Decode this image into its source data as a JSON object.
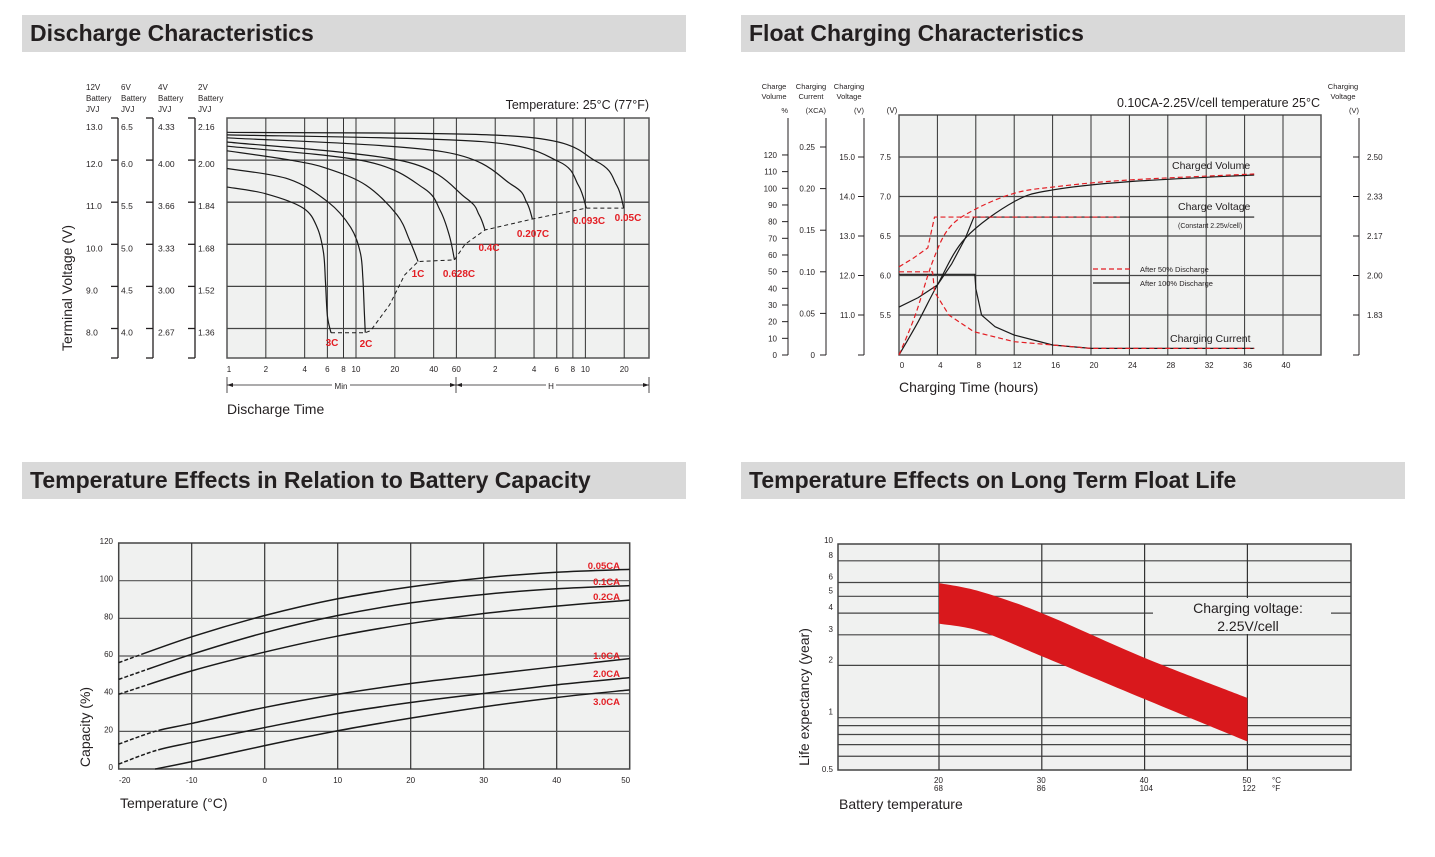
{
  "headers": {
    "discharge": "Discharge Characteristics",
    "float": "Float Charging Characteristics",
    "temp_capacity": "Temperature Effects in Relation to Battery Capacity",
    "float_life": "Temperature Effects on Long Term Float Life"
  },
  "colors": {
    "header_bg": "#d9d9d9",
    "plot_bg": "#f0f1f0",
    "accent_red": "#e31e24",
    "band_red": "#d9181c"
  },
  "chart_data": [
    {
      "type": "line",
      "id": "discharge",
      "temperature_note": "Temperature: 25°C (77°F)",
      "ylabel": "Terminal Voltage (V)",
      "xlabel": "Discharge Time",
      "x_scale": "log",
      "x_unit_labels": {
        "min": "Min",
        "h": "H"
      },
      "x_ticks_min": [
        1,
        2,
        4,
        6,
        8,
        10,
        20,
        40,
        60,
        120,
        240,
        360,
        480,
        600,
        1200
      ],
      "x_tick_labels": [
        "1",
        "2",
        "4",
        "6",
        "8",
        "10",
        "20",
        "40",
        "60",
        "2",
        "4",
        "6",
        "8",
        "10",
        "20"
      ],
      "xlim_min": [
        1,
        1860
      ],
      "ylim_12v": [
        7.3,
        13
      ],
      "y_levels_12v": [
        13,
        12,
        11,
        10,
        9,
        8
      ],
      "grid": true,
      "y_axes": [
        {
          "header": [
            "12V",
            "Battery",
            "JVJ"
          ],
          "ticks": [
            "13.0",
            "12.0",
            "11.0",
            "10.0",
            "9.0",
            "8.0"
          ]
        },
        {
          "header": [
            "6V",
            "Battery",
            "JVJ"
          ],
          "ticks": [
            "6.5",
            "6.0",
            "5.5",
            "5.0",
            "4.5",
            "4.0"
          ]
        },
        {
          "header": [
            "4V",
            "Battery",
            "JVJ"
          ],
          "ticks": [
            "4.33",
            "4.00",
            "3.66",
            "3.33",
            "3.00",
            "2.67"
          ]
        },
        {
          "header": [
            "2V",
            "Battery",
            "JVJ"
          ],
          "ticks": [
            "2.16",
            "2.00",
            "1.84",
            "1.68",
            "1.52",
            "1.36"
          ]
        }
      ],
      "series": [
        {
          "name": "3C",
          "points": [
            [
              1,
              11.36
            ],
            [
              2,
              11.2
            ],
            [
              3.9,
              10.86
            ],
            [
              5,
              10.4
            ],
            [
              5.6,
              9.8
            ],
            [
              5.8,
              9.1
            ],
            [
              6.0,
              8.3
            ],
            [
              6.4,
              7.9
            ]
          ]
        },
        {
          "name": "2C",
          "points": [
            [
              1,
              11.8
            ],
            [
              3,
              11.55
            ],
            [
              6.1,
              11.0
            ],
            [
              9.1,
              10.4
            ],
            [
              10.8,
              9.8
            ],
            [
              11.3,
              9.2
            ],
            [
              11.6,
              8.4
            ],
            [
              11.8,
              7.9
            ]
          ]
        },
        {
          "name": "1C",
          "points": [
            [
              1,
              12.22
            ],
            [
              3.1,
              12.0
            ],
            [
              6,
              11.8
            ],
            [
              12,
              11.4
            ],
            [
              20.8,
              10.7
            ],
            [
              26,
              10.1
            ],
            [
              30.3,
              9.59
            ]
          ]
        },
        {
          "name": "0.628C",
          "points": [
            [
              1,
              12.33
            ],
            [
              12,
              11.97
            ],
            [
              33.5,
              11.33
            ],
            [
              45,
              10.8
            ],
            [
              53,
              10.2
            ],
            [
              58,
              9.63
            ]
          ]
        },
        {
          "name": "0.4C",
          "points": [
            [
              1,
              12.43
            ],
            [
              23.8,
              11.97
            ],
            [
              71,
              11.1
            ],
            [
              90,
              10.7
            ],
            [
              100,
              10.34
            ]
          ]
        },
        {
          "name": "0.207C",
          "points": [
            [
              1,
              12.53
            ],
            [
              47,
              12.2
            ],
            [
              162,
              11.41
            ],
            [
              210,
              11.0
            ],
            [
              233,
              10.6
            ]
          ]
        },
        {
          "name": "0.093C",
          "points": [
            [
              1,
              12.6
            ],
            [
              94,
              12.44
            ],
            [
              370,
              11.97
            ],
            [
              530,
              11.4
            ],
            [
              610,
              10.86
            ]
          ]
        },
        {
          "name": "0.05C",
          "points": [
            [
              1,
              12.66
            ],
            [
              185,
              12.56
            ],
            [
              730,
              11.97
            ],
            [
              1050,
              11.4
            ],
            [
              1190,
              10.86
            ]
          ]
        }
      ],
      "end_voltage_line": {
        "style": "dashed",
        "points": [
          [
            6.4,
            7.9
          ],
          [
            11.8,
            7.9
          ],
          [
            13,
            7.95
          ],
          [
            18.2,
            8.56
          ],
          [
            23.8,
            9.27
          ],
          [
            30.3,
            9.59
          ],
          [
            58,
            9.63
          ],
          [
            70,
            10.0
          ],
          [
            100,
            10.34
          ],
          [
            233,
            10.6
          ],
          [
            610,
            10.86
          ],
          [
            1190,
            10.86
          ]
        ]
      }
    },
    {
      "type": "line",
      "id": "float",
      "annotation": "0.10CA-2.25V/cell  temperature 25°C",
      "xlabel": "Charging Time (hours)",
      "x_ticks": [
        0,
        4,
        8,
        12,
        16,
        20,
        24,
        28,
        32,
        36,
        40
      ],
      "xlim": [
        0,
        44
      ],
      "grid": true,
      "axes": {
        "charge_volume": {
          "header": [
            "Charge",
            "Volume",
            "%"
          ],
          "values": [
            0,
            10,
            20,
            30,
            40,
            50,
            60,
            70,
            80,
            90,
            100,
            110,
            120
          ],
          "ticks": [
            "0",
            "10",
            "20",
            "30",
            "40",
            "50",
            "60",
            "70",
            "80",
            "90",
            "100",
            "110",
            "120"
          ]
        },
        "charging_current": {
          "header": [
            "Charging",
            "Current",
            "(XCA)"
          ],
          "values": [
            0,
            0.05,
            0.1,
            0.15,
            0.2,
            0.25
          ],
          "ticks": [
            "0",
            "0.05",
            "0.10",
            "0.15",
            "0.20",
            "0.25"
          ]
        },
        "charging_voltage_12v": {
          "header": [
            "Charging",
            "Voltage",
            "(V)"
          ],
          "ticks": [
            "15.0",
            "14.0",
            "13.0",
            "12.0",
            "11.0"
          ]
        },
        "battery_voltage": {
          "header": "(V)",
          "values": [
            7.5,
            7.0,
            6.5,
            6.0,
            5.5
          ],
          "ticks": [
            "7.5",
            "7.0",
            "6.5",
            "6.0",
            "5.5"
          ]
        },
        "charging_voltage_cell": {
          "header": [
            "Charging",
            "Voltage",
            "(V)"
          ],
          "ticks": [
            "2.50",
            "2.33",
            "2.17",
            "2.00",
            "1.83"
          ]
        }
      },
      "curve_labels": {
        "charged_volume": "Charged Volume",
        "charge_voltage": "Charge Voltage",
        "constant_note": "(Constant 2.25v/cell)",
        "charging_current": "Charging Current"
      },
      "legend": {
        "dashed": "After  50% Discharge",
        "solid": "After 100% Discharge",
        "placement": "center-right"
      },
      "series": [
        {
          "quantity": "charged_volume_pct",
          "condition": "After 100% Discharge",
          "style": "solid",
          "points": [
            [
              0,
              0
            ],
            [
              2,
              20
            ],
            [
              4,
              42
            ],
            [
              6.9,
              70
            ],
            [
              12,
              92
            ],
            [
              16,
              99
            ],
            [
              24,
              104
            ],
            [
              37,
              108
            ]
          ]
        },
        {
          "quantity": "charge_voltage_v",
          "condition": "After 100% Discharge",
          "style": "solid",
          "points": [
            [
              0,
              5.6
            ],
            [
              2,
              5.72
            ],
            [
              4,
              5.88
            ],
            [
              5.5,
              6.15
            ],
            [
              6.9,
              6.47
            ],
            [
              7.8,
              6.74
            ],
            [
              37,
              6.74
            ]
          ]
        },
        {
          "quantity": "charging_current_ca",
          "condition": "After 100% Discharge",
          "style": "solid",
          "points": [
            [
              0,
              0.097
            ],
            [
              7.9,
              0.097
            ],
            [
              8.0,
              0.08
            ],
            [
              8.6,
              0.048
            ],
            [
              10,
              0.034
            ],
            [
              12,
              0.024
            ],
            [
              16,
              0.012
            ],
            [
              20,
              0.008
            ],
            [
              37,
              0.008
            ]
          ]
        },
        {
          "quantity": "charged_volume_pct",
          "condition": "After 50% Discharge",
          "style": "dashed",
          "points": [
            [
              0,
              0
            ],
            [
              1.7,
              24
            ],
            [
              3.5,
              56
            ],
            [
              5.2,
              76
            ],
            [
              7.8,
              87
            ],
            [
              12,
              97
            ],
            [
              16.4,
              101
            ],
            [
              24,
              105
            ],
            [
              37,
              108.6
            ]
          ]
        },
        {
          "quantity": "charge_voltage_v",
          "condition": "After 50% Discharge",
          "style": "dashed",
          "points": [
            [
              0,
              6.11
            ],
            [
              1.5,
              6.22
            ],
            [
              3,
              6.35
            ],
            [
              3.7,
              6.74
            ],
            [
              23,
              6.74
            ]
          ]
        },
        {
          "quantity": "charging_current_ca",
          "condition": "After 50% Discharge",
          "style": "dashed",
          "points": [
            [
              0,
              0.1
            ],
            [
              3.5,
              0.1
            ],
            [
              3.7,
              0.076
            ],
            [
              5.2,
              0.048
            ],
            [
              7.8,
              0.028
            ],
            [
              12,
              0.016
            ],
            [
              20,
              0.008
            ],
            [
              37,
              0.008
            ]
          ]
        }
      ]
    },
    {
      "type": "line",
      "id": "temp_capacity",
      "xlabel": "Temperature (°C)",
      "ylabel": "Capacity (%)",
      "xlim": [
        -20,
        50
      ],
      "ylim": [
        0,
        120
      ],
      "x_ticks": [
        "-20",
        "-10",
        "0",
        "10",
        "20",
        "30",
        "40",
        "50"
      ],
      "y_ticks": [
        "0",
        "20",
        "40",
        "60",
        "80",
        "100",
        "120"
      ],
      "grid": true,
      "series": [
        {
          "name": "0.05CA",
          "dashed_until": -17,
          "x": [
            -20,
            -10,
            0,
            10,
            20,
            30,
            40,
            50
          ],
          "values": [
            56.5,
            70.2,
            81.5,
            90.4,
            96.7,
            101.5,
            104.5,
            106
          ]
        },
        {
          "name": "0.1CA",
          "dashed_until": -16,
          "x": [
            -20,
            -10,
            0,
            10,
            20,
            30,
            40,
            50
          ],
          "values": [
            47.6,
            60.9,
            72.4,
            81.5,
            88.2,
            92.7,
            95.7,
            97.4
          ]
        },
        {
          "name": "0.2CA",
          "dashed_until": -16,
          "x": [
            -20,
            -10,
            0,
            10,
            20,
            30,
            40,
            50
          ],
          "values": [
            39.7,
            52.1,
            62.1,
            70.6,
            77.3,
            82.6,
            86.5,
            89.7
          ]
        },
        {
          "name": "1.0CA",
          "dashed_until": -15,
          "x": [
            -20,
            -15,
            -10,
            0,
            10,
            20,
            30,
            40,
            50
          ],
          "values": [
            13.2,
            20,
            24.2,
            32.7,
            39.7,
            45.4,
            50,
            54.4,
            58.6
          ]
        },
        {
          "name": "2.0CA",
          "dashed_until": -15,
          "x": [
            -20,
            -15,
            -10,
            0,
            10,
            20,
            30,
            40,
            50
          ],
          "values": [
            2.6,
            9.7,
            14.1,
            22,
            29.5,
            35.3,
            40.1,
            44.7,
            48.5
          ]
        },
        {
          "name": "3.0CA",
          "dashed_until": null,
          "x": [
            -15,
            -10,
            0,
            10,
            20,
            30,
            40,
            50
          ],
          "values": [
            0,
            3.9,
            12.4,
            20.3,
            27,
            33,
            38,
            42
          ]
        }
      ]
    },
    {
      "type": "area",
      "id": "float_life",
      "xlabel": "Battery temperature",
      "ylabel": "Life expectancy (year)",
      "y_scale": "log",
      "ylim": [
        0.5,
        10
      ],
      "y_ticks": [
        10,
        8,
        6,
        5,
        4,
        3,
        2,
        1,
        0.5
      ],
      "y_tick_labels": [
        "10",
        "8",
        "6",
        "5",
        "4",
        "3",
        "2",
        "1",
        "0.5"
      ],
      "y_minor_grid": [
        0.9,
        0.8,
        0.7,
        0.6
      ],
      "x_ticks": [
        {
          "c": "20",
          "f": "68"
        },
        {
          "c": "30",
          "f": "86"
        },
        {
          "c": "40",
          "f": "104"
        },
        {
          "c": "50",
          "f": "122"
        }
      ],
      "x_unit_labels": {
        "c": "°C",
        "f": "°F"
      },
      "grid": true,
      "annotation": [
        "Charging voltage:",
        "2.25V/cell"
      ],
      "band": {
        "upper": [
          [
            20,
            5.95
          ],
          [
            24,
            5.33
          ],
          [
            30,
            4.0
          ],
          [
            40,
            2.21
          ],
          [
            50,
            1.3
          ]
        ],
        "lower": [
          [
            20,
            3.48
          ],
          [
            24,
            3.15
          ],
          [
            30,
            2.26
          ],
          [
            40,
            1.28
          ],
          [
            50,
            0.73
          ]
        ]
      }
    }
  ]
}
